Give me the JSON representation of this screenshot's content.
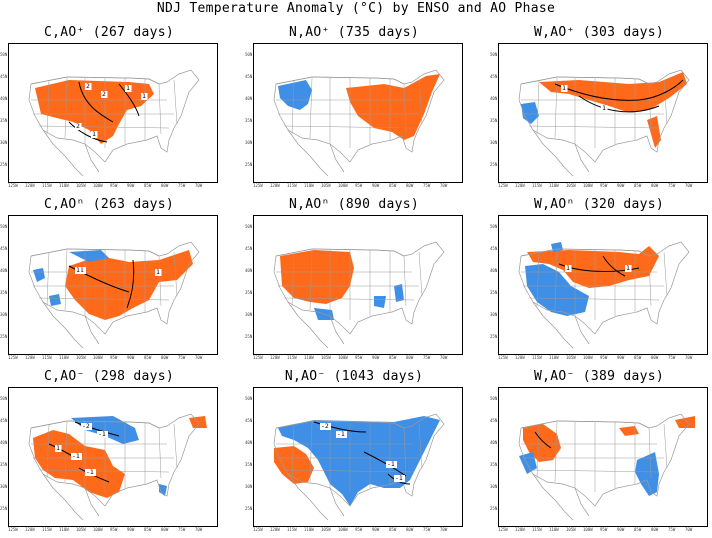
{
  "figure": {
    "title": "NDJ Temperature Anomaly (°C) by ENSO and AO Phase"
  },
  "colors": {
    "warm_anomaly": "#ff6a1a",
    "cold_anomaly": "#3f8fe6",
    "map_lines": "#9a9a9a",
    "contour": "#000000"
  },
  "axis_ticks": {
    "lat": [
      "50N",
      "45N",
      "40N",
      "35N",
      "30N",
      "25N"
    ],
    "lon": [
      "125W",
      "120W",
      "115W",
      "110W",
      "105W",
      "100W",
      "95W",
      "90W",
      "85W",
      "80W",
      "75W",
      "70W"
    ]
  },
  "panels": [
    {
      "id": "C_AOplus",
      "title": "C,AO⁺ (267 days)",
      "contour_labels": [
        "2",
        "1",
        "2",
        "2",
        "1",
        "1"
      ],
      "warm": true,
      "cold": false
    },
    {
      "id": "N_AOplus",
      "title": "N,AO⁺ (735 days)",
      "contour_labels": [],
      "warm": true,
      "cold": true
    },
    {
      "id": "W_AOplus",
      "title": "W,AO⁺ (303 days)",
      "contour_labels": [
        "2",
        "1",
        "1"
      ],
      "warm": true,
      "cold": true
    },
    {
      "id": "C_AOn",
      "title": "C,AOⁿ (263 days)",
      "contour_labels": [
        "-1",
        "1",
        "1",
        "1",
        "1"
      ],
      "warm": true,
      "cold": true
    },
    {
      "id": "N_AOn",
      "title": "N,AOⁿ (890 days)",
      "contour_labels": [],
      "warm": true,
      "cold": true
    },
    {
      "id": "W_AOn",
      "title": "W,AOⁿ (320 days)",
      "contour_labels": [
        "1",
        "1"
      ],
      "warm": true,
      "cold": true
    },
    {
      "id": "C_AOminus",
      "title": "C,AO⁻ (298 days)",
      "contour_labels": [
        "-2",
        "-1",
        "-1",
        "-1",
        "1"
      ],
      "warm": true,
      "cold": true
    },
    {
      "id": "N_AOminus",
      "title": "N,AO⁻ (1043 days)",
      "contour_labels": [
        "-2",
        "-1",
        "-1",
        "-1"
      ],
      "warm": true,
      "cold": true
    },
    {
      "id": "W_AOminus",
      "title": "W,AO⁻ (389 days)",
      "contour_labels": [],
      "warm": true,
      "cold": true
    }
  ]
}
